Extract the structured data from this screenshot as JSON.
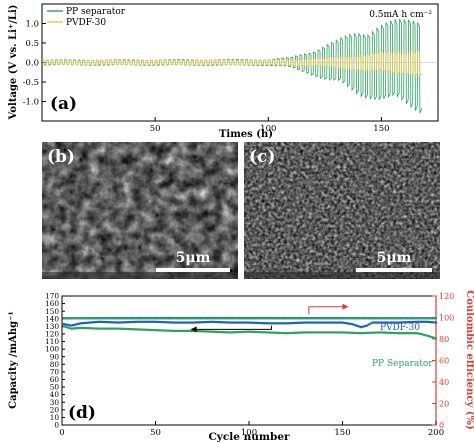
{
  "figure": {
    "panel_labels": [
      "(a)",
      "(b)",
      "(c)",
      "(d)"
    ],
    "scale_bars": [
      "5μm",
      "5μm"
    ]
  },
  "chart_data": [
    {
      "type": "line",
      "panel": "(a)",
      "xlabel": "Times (h)",
      "ylabel": "Voltage (V vs. Li⁺/Li)",
      "xlim": [
        0,
        175
      ],
      "ylim": [
        -1.5,
        1.5
      ],
      "xticks": [
        50,
        100,
        150
      ],
      "yticks": [
        1.0,
        0.5,
        0.0,
        -0.5,
        -1.0
      ],
      "annotation": "0.5mA h cm⁻²",
      "legend": "top-left",
      "colors": {
        "pp": "#2ca25f",
        "pvdf": "#e6c84a"
      },
      "series": [
        {
          "name": "PP separator",
          "shape": "square-wave",
          "cycle_h": 2,
          "envelope_t": [
            0,
            100,
            110,
            120,
            130,
            140,
            150,
            160,
            168
          ],
          "envelope_amp": [
            0.06,
            0.07,
            0.12,
            0.3,
            0.5,
            0.75,
            0.9,
            1.0,
            1.15
          ]
        },
        {
          "name": "PVDF-30",
          "shape": "square-wave",
          "cycle_h": 2,
          "envelope_t": [
            0,
            110,
            125,
            140,
            155,
            168
          ],
          "envelope_amp": [
            0.05,
            0.06,
            0.1,
            0.18,
            0.25,
            0.3
          ]
        }
      ]
    },
    {
      "type": "scatter",
      "panel": "(d)",
      "xlabel": "Cycle number",
      "ylabel": "Capacity /mAhg⁻¹",
      "ylabel_right": "Coulombic efficiency (%)",
      "xlim": [
        0,
        200
      ],
      "ylim": [
        0,
        170
      ],
      "ylim_right": [
        0,
        120
      ],
      "xticks": [
        0,
        50,
        100,
        150,
        200
      ],
      "yticks": [
        0,
        10,
        20,
        30,
        40,
        50,
        60,
        70,
        80,
        90,
        100,
        110,
        120,
        130,
        140,
        150,
        160,
        170
      ],
      "yticks_right": [
        0,
        20,
        40,
        60,
        80,
        100,
        120
      ],
      "colors": {
        "pp": "#2ca25f",
        "pvdf": "#1f5fbf",
        "right_axis": "#e03b2f"
      },
      "series": [
        {
          "name": "PVDF-30",
          "axis": "left",
          "x": [
            1,
            5,
            10,
            20,
            30,
            40,
            50,
            60,
            70,
            80,
            90,
            100,
            110,
            120,
            130,
            140,
            150,
            155,
            160,
            163,
            166,
            170,
            180,
            190,
            195,
            200
          ],
          "y": [
            133,
            131,
            134,
            136,
            135,
            136,
            136,
            135,
            135,
            136,
            135,
            135,
            134,
            134,
            135,
            135,
            135,
            133,
            129,
            131,
            135,
            135,
            135,
            136,
            136,
            135
          ]
        },
        {
          "name": "PP Separator",
          "axis": "left",
          "x": [
            1,
            5,
            10,
            20,
            30,
            40,
            50,
            60,
            70,
            80,
            90,
            100,
            110,
            120,
            130,
            140,
            150,
            160,
            170,
            180,
            190,
            195,
            200
          ],
          "y": [
            130,
            127,
            128,
            127,
            127,
            126,
            125,
            124,
            124,
            123,
            122,
            123,
            122,
            121,
            122,
            122,
            122,
            121,
            122,
            121,
            121,
            118,
            114
          ]
        },
        {
          "name": "PVDF-30 CE",
          "axis": "right",
          "x": [
            1,
            50,
            100,
            150,
            200
          ],
          "y": [
            99.5,
            99.7,
            99.7,
            99.6,
            99.5
          ]
        },
        {
          "name": "PP Separator CE",
          "axis": "right",
          "x": [
            1,
            50,
            100,
            150,
            200
          ],
          "y": [
            99,
            99,
            99,
            99,
            99
          ]
        }
      ]
    }
  ]
}
